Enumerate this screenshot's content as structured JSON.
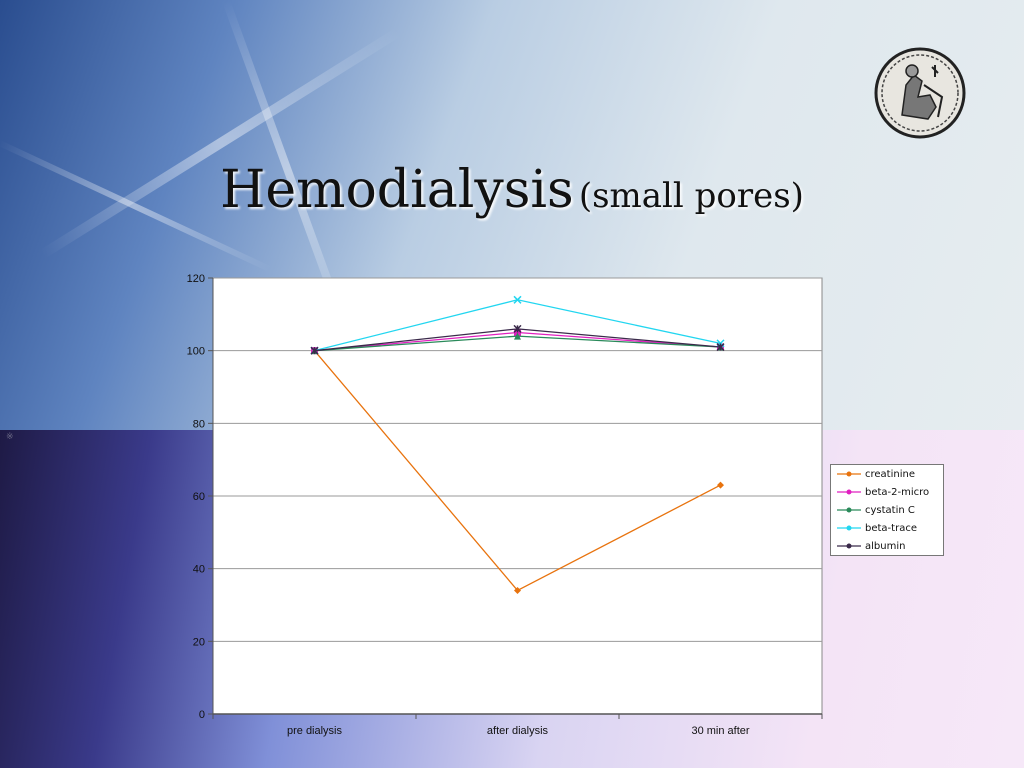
{
  "slide": {
    "title_main": "Hemodialysis",
    "title_sub": "(small pores)"
  },
  "chart_data": {
    "type": "line",
    "categories": [
      "pre dialysis",
      "after dialysis",
      "30 min after"
    ],
    "ylim": [
      0,
      120
    ],
    "yticks": [
      0,
      20,
      40,
      60,
      80,
      100,
      120
    ],
    "grid": true,
    "legend_position": "right",
    "series": [
      {
        "name": "creatinine",
        "values": [
          100,
          34,
          63
        ],
        "color": "#e8730e",
        "marker": "diamond"
      },
      {
        "name": "beta-2-micro",
        "values": [
          100,
          105,
          101
        ],
        "color": "#e020c0",
        "marker": "square"
      },
      {
        "name": "cystatin C",
        "values": [
          100,
          104,
          101
        ],
        "color": "#2a8a5a",
        "marker": "triangle"
      },
      {
        "name": "beta-trace",
        "values": [
          100,
          114,
          102
        ],
        "color": "#22d6f0",
        "marker": "x"
      },
      {
        "name": "albumin",
        "values": [
          100,
          106,
          101
        ],
        "color": "#3a2a4a",
        "marker": "star"
      }
    ]
  }
}
